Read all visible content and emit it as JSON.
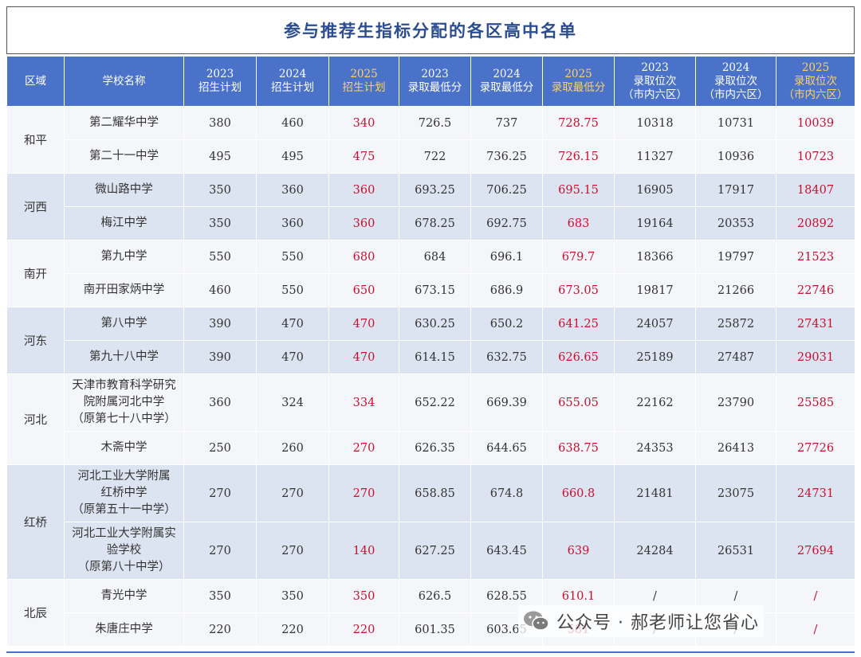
{
  "title": "参与推荐生指标分配的各区高中名单",
  "headers": [
    {
      "line1": "区域",
      "line2": "",
      "line3": "",
      "highlight": false
    },
    {
      "line1": "学校名称",
      "line2": "",
      "line3": "",
      "highlight": false
    },
    {
      "line1": "2023",
      "line2": "招生计划",
      "line3": "",
      "highlight": false
    },
    {
      "line1": "2024",
      "line2": "招生计划",
      "line3": "",
      "highlight": false
    },
    {
      "line1": "2025",
      "line2": "招生计划",
      "line3": "",
      "highlight": true
    },
    {
      "line1": "2023",
      "line2": "录取最低分",
      "line3": "",
      "highlight": false
    },
    {
      "line1": "2024",
      "line2": "录取最低分",
      "line3": "",
      "highlight": false
    },
    {
      "line1": "2025",
      "line2": "录取最低分",
      "line3": "",
      "highlight": true
    },
    {
      "line1": "2023",
      "line2": "录取位次",
      "line3": "（市内六区）",
      "highlight": false
    },
    {
      "line1": "2024",
      "line2": "录取位次",
      "line3": "（市内六区）",
      "highlight": false
    },
    {
      "line1": "2025",
      "line2": "录取位次",
      "line3": "（市内六区）",
      "highlight": true
    }
  ],
  "regions": [
    {
      "name": "和平",
      "schools": [
        {
          "lines": [
            "第二耀华中学"
          ],
          "v": [
            "380",
            "460",
            "340",
            "726.5",
            "737",
            "728.75",
            "10318",
            "10731",
            "10039"
          ]
        },
        {
          "lines": [
            "第二十一中学"
          ],
          "v": [
            "495",
            "495",
            "475",
            "722",
            "736.25",
            "726.15",
            "11327",
            "10936",
            "10723"
          ]
        }
      ]
    },
    {
      "name": "河西",
      "schools": [
        {
          "lines": [
            "微山路中学"
          ],
          "v": [
            "350",
            "360",
            "360",
            "693.25",
            "706.25",
            "695.15",
            "16905",
            "17917",
            "18407"
          ]
        },
        {
          "lines": [
            "梅江中学"
          ],
          "v": [
            "350",
            "360",
            "360",
            "678.25",
            "692.75",
            "683",
            "19164",
            "20353",
            "20892"
          ]
        }
      ]
    },
    {
      "name": "南开",
      "schools": [
        {
          "lines": [
            "第九中学"
          ],
          "v": [
            "550",
            "550",
            "680",
            "684",
            "696.1",
            "679.7",
            "18366",
            "19797",
            "21523"
          ]
        },
        {
          "lines": [
            "南开田家炳中学"
          ],
          "v": [
            "460",
            "550",
            "650",
            "673.15",
            "686.9",
            "673.05",
            "19817",
            "21266",
            "22746"
          ]
        }
      ]
    },
    {
      "name": "河东",
      "schools": [
        {
          "lines": [
            "第八中学"
          ],
          "v": [
            "390",
            "470",
            "470",
            "630.25",
            "650.2",
            "641.25",
            "24057",
            "25872",
            "27431"
          ]
        },
        {
          "lines": [
            "第九十八中学"
          ],
          "v": [
            "390",
            "470",
            "470",
            "614.15",
            "632.75",
            "626.65",
            "25189",
            "27487",
            "29031"
          ]
        }
      ]
    },
    {
      "name": "河北",
      "schools": [
        {
          "lines": [
            "天津市教育科学研究",
            "院附属河北中学",
            "（原第七十八中学）"
          ],
          "v": [
            "360",
            "324",
            "334",
            "652.22",
            "669.39",
            "655.05",
            "22162",
            "23790",
            "25585"
          ]
        },
        {
          "lines": [
            "木斋中学"
          ],
          "v": [
            "250",
            "260",
            "270",
            "626.35",
            "644.65",
            "638.75",
            "24353",
            "26413",
            "27726"
          ]
        }
      ]
    },
    {
      "name": "红桥",
      "schools": [
        {
          "lines": [
            "河北工业大学附属",
            "红桥中学",
            "（原第五十一中学）"
          ],
          "v": [
            "270",
            "270",
            "270",
            "658.85",
            "674.8",
            "660.8",
            "21481",
            "23075",
            "24731"
          ]
        },
        {
          "lines": [
            "河北工业大学附属实",
            "验学校",
            "（原第八十中学）"
          ],
          "v": [
            "270",
            "270",
            "140",
            "627.25",
            "643.45",
            "639",
            "24284",
            "26531",
            "27694"
          ]
        }
      ]
    },
    {
      "name": "北辰",
      "schools": [
        {
          "lines": [
            "青光中学"
          ],
          "v": [
            "350",
            "350",
            "350",
            "626.5",
            "628.55",
            "610.1",
            "/",
            "/",
            "/"
          ]
        },
        {
          "lines": [
            "朱唐庄中学"
          ],
          "v": [
            "220",
            "220",
            "220",
            "601.35",
            "603.65",
            "581",
            "/",
            "/",
            "/"
          ]
        }
      ]
    }
  ],
  "watermark": {
    "text": "公众号 · 郝老师让您省心",
    "icon": "wechat-icon",
    "color": "#444444"
  },
  "colors": {
    "header_bg": "#4a72c8",
    "header_highlight": "#ffd166",
    "value_red": "#c8102e",
    "title": "#2b4d8f"
  }
}
